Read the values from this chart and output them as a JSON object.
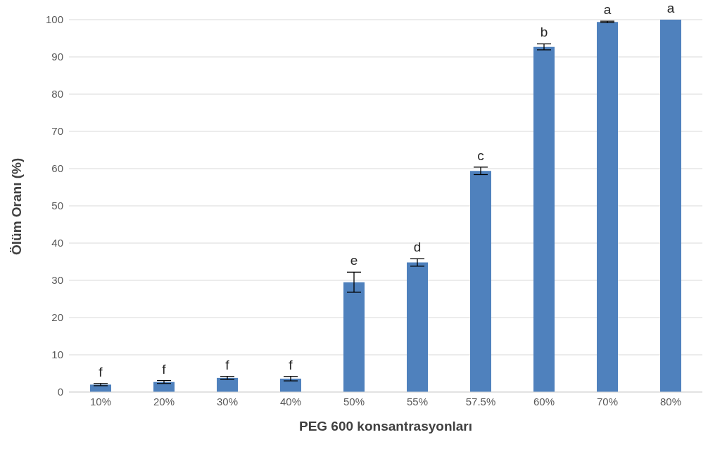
{
  "chart_data": {
    "type": "bar",
    "xlabel": "PEG 600 konsantrasyonları",
    "ylabel": "Ölüm Oranı (%)",
    "categories": [
      "10%",
      "20%",
      "30%",
      "40%",
      "50%",
      "55%",
      "57.5%",
      "60%",
      "70%",
      "80%"
    ],
    "values": [
      2.0,
      2.7,
      3.8,
      3.6,
      29.5,
      34.8,
      59.4,
      92.7,
      99.4,
      100
    ],
    "errors": [
      0.3,
      0.4,
      0.4,
      0.6,
      2.7,
      1,
      1,
      0.8,
      0.2,
      0
    ],
    "color": "#4f81bd",
    "ylim": [
      0,
      100
    ],
    "yticks": [
      0,
      10,
      20,
      30,
      40,
      50,
      60,
      70,
      80,
      90,
      100
    ],
    "grid": "y",
    "annotations": [
      {
        "text": "f",
        "x": "10%",
        "y": 2.3
      },
      {
        "text": "f",
        "x": "20%",
        "y": 3.1
      },
      {
        "text": "f",
        "x": "30%",
        "y": 4.2
      },
      {
        "text": "f",
        "x": "40%",
        "y": 4.2
      },
      {
        "text": "e",
        "x": "50%",
        "y": 32.2
      },
      {
        "text": "d",
        "x": "55%",
        "y": 35.8
      },
      {
        "text": "c",
        "x": "57.5%",
        "y": 60.4
      },
      {
        "text": "b",
        "x": "60%",
        "y": 93.5
      },
      {
        "text": "a",
        "x": "70%",
        "y": 99.6
      },
      {
        "text": "a",
        "x": "80%",
        "y": 100
      }
    ]
  }
}
